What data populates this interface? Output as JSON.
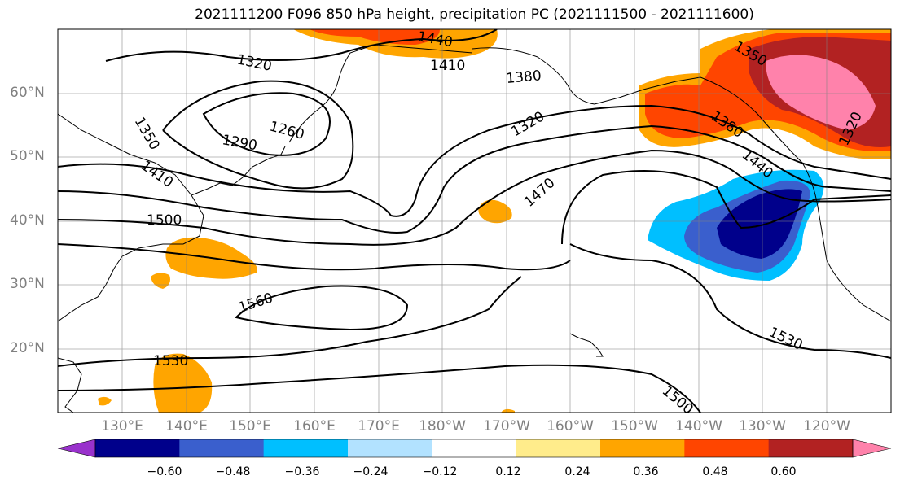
{
  "title": "2021111200 F096 850 hPa height, precipitation PC (2021111500 - 2021111600)",
  "lat_labels": [
    "60°N",
    "50°N",
    "40°N",
    "30°N",
    "20°N"
  ],
  "lon_labels": [
    "130°E",
    "140°E",
    "150°E",
    "160°E",
    "170°E",
    "180°W",
    "170°W",
    "160°W",
    "150°W",
    "140°W",
    "130°W",
    "120°W"
  ],
  "contour_labels": [
    "1440",
    "1410",
    "1380",
    "1320",
    "1350",
    "1260",
    "1290",
    "1410",
    "1500",
    "1320",
    "1470",
    "1560",
    "1530",
    "1530",
    "1500",
    "1350",
    "1380",
    "1440",
    "1320"
  ],
  "colorbar": {
    "ticks": [
      "−0.60",
      "−0.48",
      "−0.36",
      "−0.24",
      "−0.12",
      "0.12",
      "0.24",
      "0.36",
      "0.48",
      "0.60"
    ],
    "colors": [
      "#9932cc",
      "#00008b",
      "#3a5fcd",
      "#00bfff",
      "#b2e2ff",
      "#ffffff",
      "#ffec8b",
      "#ffa500",
      "#ff4500",
      "#b22222",
      "#ff82ab"
    ]
  }
}
